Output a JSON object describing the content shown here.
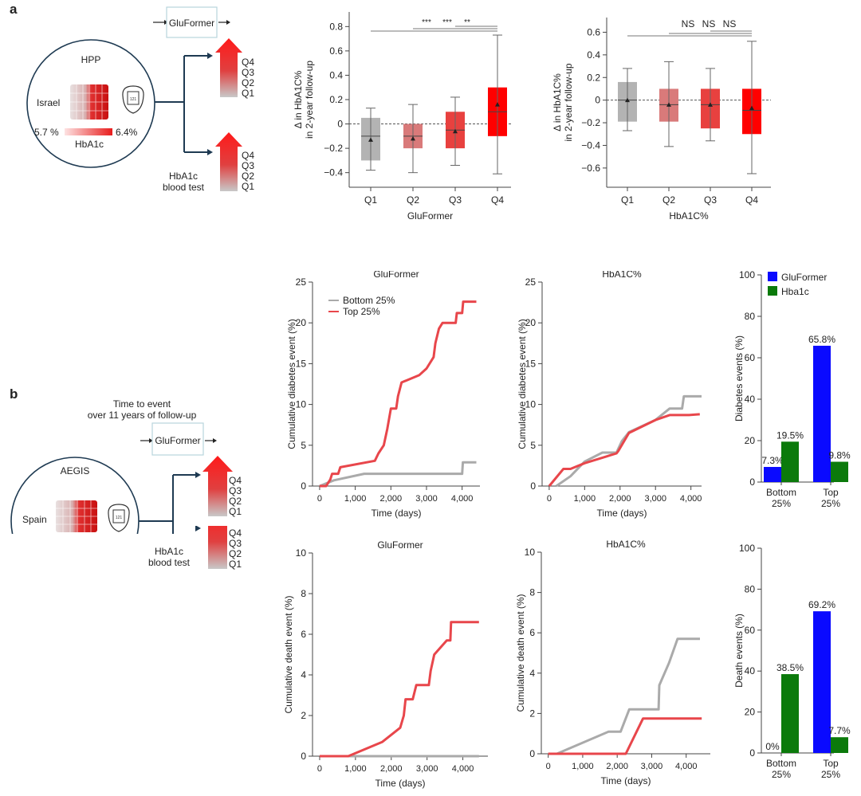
{
  "panel_a": {
    "letter": "a",
    "schematic": {
      "model_box_label": "GluFormer",
      "cohort_name": "HPP",
      "country": "Israel",
      "hba1c_low": "5.7 %",
      "hba1c_high": "6.4%",
      "hba1c_label": "HbA1c",
      "device_label": "121",
      "blood_test_label_line1": "HbA1c",
      "blood_test_label_line2": "blood test",
      "quartiles": [
        "Q4",
        "Q3",
        "Q2",
        "Q1"
      ]
    }
  },
  "panel_b": {
    "letter": "b",
    "schematic": {
      "header_line1": "Time to event",
      "header_line2": "over 11 years of follow-up",
      "model_box_label": "GluFormer",
      "cohort_name": "AEGIS",
      "country": "Spain",
      "device_label": "121",
      "blood_test_label_line1": "HbA1c",
      "blood_test_label_line2": "blood test",
      "quartiles": [
        "Q4",
        "Q3",
        "Q2",
        "Q1"
      ]
    }
  },
  "colors": {
    "q1": "#b3b3b3",
    "q2": "#d97a7a",
    "q3": "#e8413f",
    "q4": "#ff0000",
    "bottom_line": "#aaaaaa",
    "top_line": "#e8464b",
    "gluformer_bar": "#0a0aff",
    "hba1c_bar": "#0b7a0b",
    "axis": "#444444",
    "navy": "#1e3a52",
    "box_border": "#b8d4dc"
  },
  "chart_data": [
    {
      "id": "box-gluformer",
      "type": "box",
      "xlabel": "GluFormer",
      "ylabel_line1": "Δ in HbA1C%",
      "ylabel_line2": "in 2-year follow-up",
      "categories": [
        "Q1",
        "Q2",
        "Q3",
        "Q4"
      ],
      "ylim": [
        -0.52,
        0.92
      ],
      "yticks": [
        -0.4,
        -0.2,
        0,
        0.2,
        0.4,
        0.6,
        0.8
      ],
      "ytick_labels": [
        "−0.4",
        "−0.2",
        "0",
        "0.2",
        "0.4",
        "0.6",
        "0.8"
      ],
      "reference_line": 0,
      "boxes": [
        {
          "whisker_low": -0.38,
          "q1": -0.3,
          "median": -0.1,
          "q3": 0.05,
          "whisker_high": 0.13,
          "mean": -0.13
        },
        {
          "whisker_low": -0.4,
          "q1": -0.2,
          "median": -0.1,
          "q3": 0.0,
          "whisker_high": 0.16,
          "mean": -0.12
        },
        {
          "whisker_low": -0.34,
          "q1": -0.2,
          "median": -0.05,
          "q3": 0.1,
          "whisker_high": 0.22,
          "mean": -0.06
        },
        {
          "whisker_low": -0.41,
          "q1": -0.1,
          "median": 0.1,
          "q3": 0.3,
          "whisker_high": 0.73,
          "mean": 0.16
        }
      ],
      "significance": [
        {
          "from": "Q1",
          "to": "Q4",
          "label": "***"
        },
        {
          "from": "Q2",
          "to": "Q4",
          "label": "***"
        },
        {
          "from": "Q3",
          "to": "Q4",
          "label": "**"
        }
      ]
    },
    {
      "id": "box-hba1c",
      "type": "box",
      "xlabel": "HbA1C%",
      "ylabel_line1": "Δ in HbA1C%",
      "ylabel_line2": "in 2-year follow-up",
      "categories": [
        "Q1",
        "Q2",
        "Q3",
        "Q4"
      ],
      "ylim": [
        -0.77,
        0.73
      ],
      "yticks": [
        -0.6,
        -0.4,
        -0.2,
        0,
        0.2,
        0.4,
        0.6
      ],
      "ytick_labels": [
        "−0.6",
        "−0.4",
        "−0.2",
        "0",
        "0.2",
        "0.4",
        "0.6"
      ],
      "reference_line": 0,
      "boxes": [
        {
          "whisker_low": -0.27,
          "q1": -0.19,
          "median": 0.0,
          "q3": 0.16,
          "whisker_high": 0.28,
          "mean": 0.0
        },
        {
          "whisker_low": -0.41,
          "q1": -0.19,
          "median": -0.04,
          "q3": 0.1,
          "whisker_high": 0.34,
          "mean": -0.04
        },
        {
          "whisker_low": -0.36,
          "q1": -0.25,
          "median": -0.04,
          "q3": 0.1,
          "whisker_high": 0.28,
          "mean": -0.04
        },
        {
          "whisker_low": -0.65,
          "q1": -0.3,
          "median": -0.09,
          "q3": 0.1,
          "whisker_high": 0.52,
          "mean": -0.07
        }
      ],
      "significance": [
        {
          "from": "Q1",
          "to": "Q4",
          "label": "NS"
        },
        {
          "from": "Q2",
          "to": "Q4",
          "label": "NS"
        },
        {
          "from": "Q3",
          "to": "Q4",
          "label": "NS"
        }
      ]
    },
    {
      "id": "km-diabetes-gluformer",
      "type": "line",
      "title": "GluFormer",
      "xlabel": "Time (days)",
      "ylabel": "Cumulative diabetes event (%)",
      "xlim": [
        -200,
        4500
      ],
      "ylim": [
        0,
        25
      ],
      "xticks": [
        0,
        1000,
        2000,
        3000,
        4000
      ],
      "xtick_labels": [
        "0",
        "1,000",
        "2,000",
        "3,000",
        "4,000"
      ],
      "yticks": [
        0,
        5,
        10,
        15,
        20,
        25
      ],
      "ytick_labels": [
        "0",
        "5",
        "10",
        "15",
        "20",
        "25"
      ],
      "legend": [
        "Bottom 25%",
        "Top 25%"
      ],
      "legend_position": "top-left",
      "series": [
        {
          "name": "Bottom 25%",
          "points": [
            [
              0,
              0
            ],
            [
              400,
              0.7
            ],
            [
              1250,
              1.5
            ],
            [
              4000,
              1.5
            ],
            [
              4020,
              2.9
            ],
            [
              4400,
              2.9
            ]
          ]
        },
        {
          "name": "Top 25%",
          "points": [
            [
              0,
              0
            ],
            [
              180,
              0
            ],
            [
              300,
              0.8
            ],
            [
              350,
              1.5
            ],
            [
              520,
              1.5
            ],
            [
              580,
              2.3
            ],
            [
              1550,
              3.1
            ],
            [
              1650,
              4
            ],
            [
              1800,
              5
            ],
            [
              1900,
              7
            ],
            [
              2000,
              9.5
            ],
            [
              2150,
              9.5
            ],
            [
              2200,
              11
            ],
            [
              2300,
              12.7
            ],
            [
              2800,
              13.6
            ],
            [
              3000,
              14.4
            ],
            [
              3200,
              15.8
            ],
            [
              3250,
              17.5
            ],
            [
              3350,
              19.3
            ],
            [
              3450,
              20
            ],
            [
              3820,
              20
            ],
            [
              3850,
              21.2
            ],
            [
              4000,
              21.2
            ],
            [
              4030,
              22.6
            ],
            [
              4400,
              22.6
            ]
          ]
        }
      ]
    },
    {
      "id": "km-diabetes-hba1c",
      "type": "line",
      "title": "HbA1C%",
      "xlabel": "Time (days)",
      "ylabel": "Cumulative diabetes event (%)",
      "xlim": [
        -200,
        4300
      ],
      "ylim": [
        0,
        25
      ],
      "xticks": [
        0,
        1000,
        2000,
        3000,
        4000
      ],
      "xtick_labels": [
        "0",
        "1,000",
        "2,000",
        "3,000",
        "4,000"
      ],
      "yticks": [
        0,
        5,
        10,
        15,
        20,
        25
      ],
      "ytick_labels": [
        "0",
        "5",
        "10",
        "15",
        "20",
        "25"
      ],
      "series": [
        {
          "name": "Bottom 25%",
          "points": [
            [
              200,
              0
            ],
            [
              600,
              1.2
            ],
            [
              1000,
              3
            ],
            [
              1500,
              4.1
            ],
            [
              1900,
              4.1
            ],
            [
              2050,
              5.5
            ],
            [
              2250,
              6.6
            ],
            [
              3000,
              8.1
            ],
            [
              3400,
              9.5
            ],
            [
              3750,
              9.5
            ],
            [
              3800,
              11
            ],
            [
              4300,
              11
            ]
          ]
        },
        {
          "name": "Top 25%",
          "points": [
            [
              0,
              0
            ],
            [
              400,
              2.1
            ],
            [
              600,
              2.1
            ],
            [
              1000,
              2.8
            ],
            [
              1900,
              4
            ],
            [
              1950,
              4.3
            ],
            [
              2250,
              6.5
            ],
            [
              3000,
              8.1
            ],
            [
              3400,
              8.7
            ],
            [
              3950,
              8.7
            ],
            [
              4250,
              8.8
            ]
          ]
        }
      ]
    },
    {
      "id": "bar-diabetes",
      "type": "bar",
      "ylabel": "Diabetes events (%)",
      "ylim": [
        0,
        100
      ],
      "yticks": [
        0,
        20,
        40,
        60,
        80,
        100
      ],
      "ytick_labels": [
        "0",
        "20",
        "40",
        "60",
        "80",
        "100"
      ],
      "categories": [
        "Bottom\n25%",
        "Top\n25%"
      ],
      "category_line1": [
        "Bottom",
        "Top"
      ],
      "category_line2": [
        "25%",
        "25%"
      ],
      "legend": [
        "GluFormer",
        "Hba1c"
      ],
      "legend_position": "top-left",
      "series": [
        {
          "name": "GluFormer",
          "values": [
            7.3,
            65.8
          ],
          "labels": [
            "7.3%",
            "65.8%"
          ]
        },
        {
          "name": "Hba1c",
          "values": [
            19.5,
            9.8
          ],
          "labels": [
            "19.5%",
            "9.8%"
          ]
        }
      ]
    },
    {
      "id": "km-death-gluformer",
      "type": "line",
      "title": "GluFormer",
      "xlabel": "Time (days)",
      "ylabel": "Cumulative death event (%)",
      "xlim": [
        -200,
        4700
      ],
      "ylim": [
        0,
        10
      ],
      "xticks": [
        0,
        1000,
        2000,
        3000,
        4000
      ],
      "xtick_labels": [
        "0",
        "1,000",
        "2,000",
        "3,000",
        "4,000"
      ],
      "yticks": [
        0,
        2,
        4,
        6,
        8,
        10
      ],
      "ytick_labels": [
        "0",
        "2",
        "4",
        "6",
        "8",
        "10"
      ],
      "series": [
        {
          "name": "Bottom 25%",
          "points": [
            [
              0,
              0
            ],
            [
              4450,
              0
            ]
          ]
        },
        {
          "name": "Top 25%",
          "points": [
            [
              0,
              0
            ],
            [
              800,
              0
            ],
            [
              1750,
              0.7
            ],
            [
              2250,
              1.4
            ],
            [
              2350,
              2
            ],
            [
              2400,
              2.8
            ],
            [
              2600,
              2.8
            ],
            [
              2700,
              3.5
            ],
            [
              3050,
              3.5
            ],
            [
              3100,
              4.2
            ],
            [
              3200,
              5
            ],
            [
              3550,
              5.7
            ],
            [
              3650,
              5.7
            ],
            [
              3670,
              6.6
            ],
            [
              4450,
              6.6
            ]
          ]
        }
      ]
    },
    {
      "id": "km-death-hba1c",
      "type": "line",
      "title": "HbA1C%",
      "xlabel": "Time (days)",
      "ylabel": "Cumulative death event (%)",
      "xlim": [
        -200,
        4700
      ],
      "ylim": [
        0,
        10
      ],
      "xticks": [
        0,
        1000,
        2000,
        3000,
        4000
      ],
      "xtick_labels": [
        "0",
        "1,000",
        "2,000",
        "3,000",
        "4,000"
      ],
      "yticks": [
        0,
        2,
        4,
        6,
        8,
        10
      ],
      "ytick_labels": [
        "0",
        "2",
        "4",
        "6",
        "8",
        "10"
      ],
      "series": [
        {
          "name": "Bottom 25%",
          "points": [
            [
              0,
              0
            ],
            [
              250,
              0
            ],
            [
              1750,
              1.1
            ],
            [
              2100,
              1.1
            ],
            [
              2350,
              2.2
            ],
            [
              3200,
              2.2
            ],
            [
              3220,
              3.4
            ],
            [
              3500,
              4.5
            ],
            [
              3750,
              5.7
            ],
            [
              4400,
              5.7
            ]
          ]
        },
        {
          "name": "Top 25%",
          "points": [
            [
              0,
              0
            ],
            [
              2250,
              0
            ],
            [
              2750,
              1.75
            ],
            [
              4450,
              1.75
            ]
          ]
        }
      ]
    },
    {
      "id": "bar-death",
      "type": "bar",
      "ylabel": "Death events (%)",
      "ylim": [
        0,
        100
      ],
      "yticks": [
        0,
        20,
        40,
        60,
        80,
        100
      ],
      "ytick_labels": [
        "0",
        "20",
        "40",
        "60",
        "80",
        "100"
      ],
      "categories": [
        "Bottom\n25%",
        "Top\n25%"
      ],
      "category_line1": [
        "Bottom",
        "Top"
      ],
      "category_line2": [
        "25%",
        "25%"
      ],
      "series": [
        {
          "name": "GluFormer",
          "values": [
            0,
            69.2
          ],
          "labels": [
            "0%",
            "69.2%"
          ]
        },
        {
          "name": "Hba1c",
          "values": [
            38.5,
            7.7
          ],
          "labels": [
            "38.5%",
            "7.7%"
          ]
        }
      ]
    }
  ]
}
